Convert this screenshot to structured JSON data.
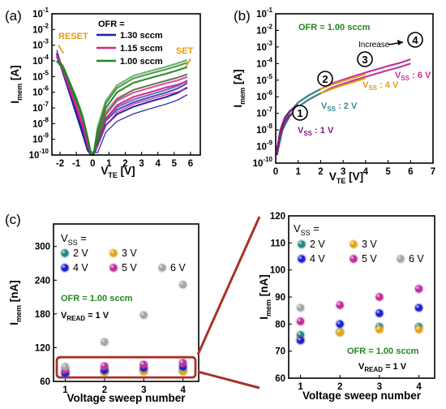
{
  "colors": {
    "ofr_1_30": "#1f1fa8",
    "ofr_1_15": "#d2258e",
    "ofr_1_00": "#23851f",
    "orange": "#e39c1a",
    "teal": "#2e8c95",
    "purple": "#85197e",
    "red_callout": "#a8322a",
    "green_text": "#23861f",
    "v2": "#27888a",
    "v3": "#e2a51b",
    "v4": "#1f23d1",
    "v5": "#c2309b",
    "v6": "#a6a6a6"
  },
  "chart_data": [
    {
      "panel_label": "(a)",
      "type": "line",
      "xlabel": "V",
      "xlabel_sub": "TE",
      "xlabel_unit": "[V]",
      "ylabel": "I",
      "ylabel_sub": "mem",
      "ylabel_unit": "[A]",
      "y_scale": "log",
      "xlim": [
        -2.5,
        6.6
      ],
      "ylim": [
        1e-10,
        0.1
      ],
      "x_ticks": [
        "-2",
        "-1",
        "0",
        "1",
        "2",
        "3",
        "4",
        "5",
        "6"
      ],
      "y_ticks": [
        {
          "base": "10",
          "exp": "-1"
        },
        {
          "base": "10",
          "exp": "-2"
        },
        {
          "base": "10",
          "exp": "-3"
        },
        {
          "base": "10",
          "exp": "-4"
        },
        {
          "base": "10",
          "exp": "-5"
        },
        {
          "base": "10",
          "exp": "-6"
        },
        {
          "base": "10",
          "exp": "-7"
        },
        {
          "base": "10",
          "exp": "-8"
        },
        {
          "base": "10",
          "exp": "-9"
        },
        {
          "base": "10",
          "exp": "-10"
        }
      ],
      "legend_title": "OFR =",
      "series": [
        {
          "name": "1.30 sccm",
          "color_key": "ofr_1_30",
          "x": [
            -2.2,
            -1.8,
            -1.4,
            -1.0,
            -0.6,
            -0.3,
            -0.1,
            0.05,
            0.3,
            0.8,
            1.5,
            2.5,
            3.5,
            4.5,
            5.2,
            5.8
          ],
          "y": [
            0.0003,
            1.5e-05,
            8e-07,
            4e-08,
            2e-09,
            2e-10,
            1e-10,
            1e-10,
            4e-10,
            8e-09,
            4e-08,
            1.2e-07,
            2.5e-07,
            5e-07,
            9e-07,
            2e-06
          ]
        },
        {
          "name": "1.15 sccm",
          "color_key": "ofr_1_15",
          "x": [
            -2.2,
            -1.8,
            -1.4,
            -1.0,
            -0.6,
            -0.3,
            -0.1,
            0.05,
            0.3,
            0.8,
            1.5,
            2.5,
            3.5,
            4.5,
            5.2,
            5.8
          ],
          "y": [
            0.0002,
            2e-05,
            1.5e-06,
            1e-07,
            6e-09,
            4e-10,
            1e-10,
            1e-10,
            1e-09,
            2e-08,
            1.5e-07,
            5e-07,
            1e-06,
            2e-06,
            3e-06,
            5e-06
          ]
        },
        {
          "name": "1.00 sccm",
          "color_key": "ofr_1_00",
          "x": [
            -2.2,
            -1.8,
            -1.4,
            -1.0,
            -0.6,
            -0.3,
            -0.1,
            0.05,
            0.3,
            0.8,
            1.5,
            2.5,
            3.5,
            4.5,
            5.2,
            5.8
          ],
          "y": [
            0.0001,
            3e-05,
            3e-06,
            3e-07,
            2e-08,
            1e-09,
            1e-10,
            1e-10,
            2e-09,
            1e-07,
            1e-06,
            4e-06,
            8e-06,
            1.5e-05,
            2.5e-05,
            4e-05
          ]
        }
      ],
      "annotations": [
        {
          "text": "RESET",
          "color_key": "orange"
        },
        {
          "text": "SET",
          "color_key": "orange"
        }
      ]
    },
    {
      "panel_label": "(b)",
      "type": "line",
      "xlabel": "V",
      "xlabel_sub": "TE",
      "xlabel_unit": "[V]",
      "ylabel": "I",
      "ylabel_sub": "mem",
      "ylabel_unit": "[A]",
      "y_scale": "log",
      "xlim": [
        0,
        7
      ],
      "ylim": [
        1e-10,
        0.1
      ],
      "x_ticks": [
        "0",
        "1",
        "2",
        "3",
        "4",
        "5",
        "6",
        "7"
      ],
      "y_ticks": [
        {
          "base": "10",
          "exp": "-1"
        },
        {
          "base": "10",
          "exp": "-2"
        },
        {
          "base": "10",
          "exp": "-3"
        },
        {
          "base": "10",
          "exp": "-4"
        },
        {
          "base": "10",
          "exp": "-5"
        },
        {
          "base": "10",
          "exp": "-6"
        },
        {
          "base": "10",
          "exp": "-7"
        },
        {
          "base": "10",
          "exp": "-8"
        },
        {
          "base": "10",
          "exp": "-9"
        },
        {
          "base": "10",
          "exp": "-10"
        }
      ],
      "ofr_text": "OFR = 1.00 sccm",
      "increase_text": "Increase",
      "markers": [
        "1",
        "2",
        "3",
        "4"
      ],
      "series": [
        {
          "name": "V",
          "name_sub": "SS",
          "name_rest": " : 1 V",
          "color_key": "purple",
          "x": [
            0.05,
            0.2,
            0.4,
            0.6,
            0.8,
            1.0
          ],
          "y": [
            3e-10,
            5e-09,
            3e-08,
            7e-08,
            1.2e-07,
            1.8e-07
          ]
        },
        {
          "name": "V",
          "name_sub": "SS",
          "name_rest": " : 2 V",
          "color_key": "teal",
          "x": [
            0.05,
            0.3,
            0.6,
            1.0,
            1.4,
            1.8,
            2.0
          ],
          "y": [
            3e-10,
            1e-08,
            6e-08,
            2.5e-07,
            6e-07,
            1.2e-06,
            1.6e-06
          ]
        },
        {
          "name": "V",
          "name_sub": "SS",
          "name_rest": " : 4 V",
          "color_key": "orange",
          "x": [
            0.05,
            0.3,
            0.6,
            1.0,
            1.5,
            2.0,
            2.5,
            3.0,
            3.5,
            4.0
          ],
          "y": [
            3e-10,
            1e-08,
            6e-08,
            2.5e-07,
            7e-07,
            1.6e-06,
            3e-06,
            5e-06,
            8e-06,
            1.3e-05
          ]
        },
        {
          "name": "V",
          "name_sub": "SS",
          "name_rest": " : 6 V",
          "color_key": "v5",
          "x": [
            0.05,
            0.3,
            0.6,
            1.0,
            1.5,
            2.0,
            2.5,
            3.0,
            3.5,
            4.0,
            4.5,
            5.0,
            5.5,
            6.0
          ],
          "y": [
            3e-10,
            1e-08,
            6e-08,
            2.5e-07,
            7e-07,
            1.6e-06,
            3.5e-06,
            6e-06,
            1e-05,
            1.6e-05,
            2.5e-05,
            4e-05,
            6e-05,
            0.0001
          ]
        }
      ]
    },
    {
      "panel_label": "(c)",
      "type": "scatter",
      "xlabel": "Voltage sweep number",
      "ylabel": "I",
      "ylabel_sub": "mem",
      "ylabel_unit": "[nA]",
      "xlim": [
        0.7,
        4.4
      ],
      "ylim": [
        60,
        340
      ],
      "x_ticks": [
        "1",
        "2",
        "3",
        "4"
      ],
      "y_ticks": [
        "60",
        "120",
        "180",
        "240",
        "300"
      ],
      "legend_title": "V",
      "legend_title_sub": "SS",
      "legend_title_rest": " =",
      "ofr_text": "OFR = 1.00 sccm",
      "vread_main": "V",
      "vread_sub": "READ",
      "vread_rest": " = 1 V",
      "series": [
        {
          "name": "2 V",
          "color_key": "v2",
          "x": [
            1,
            2,
            3,
            4
          ],
          "y": [
            76,
            77,
            79,
            79
          ]
        },
        {
          "name": "3 V",
          "color_key": "v3",
          "x": [
            1,
            2,
            3,
            4
          ],
          "y": [
            74,
            77,
            78,
            78
          ]
        },
        {
          "name": "4 V",
          "color_key": "v4",
          "x": [
            1,
            2,
            3,
            4
          ],
          "y": [
            74,
            80,
            84,
            86
          ]
        },
        {
          "name": "5 V",
          "color_key": "v5",
          "x": [
            1,
            2,
            3,
            4
          ],
          "y": [
            81,
            87,
            90,
            93
          ]
        },
        {
          "name": "6 V",
          "color_key": "v6",
          "x": [
            1,
            2,
            3,
            4
          ],
          "y": [
            86,
            130,
            178,
            232
          ]
        }
      ]
    },
    {
      "panel_label": "",
      "type": "scatter",
      "xlabel": "Voltage sweep number",
      "ylabel": "I",
      "ylabel_sub": "mem",
      "ylabel_unit": "[nA]",
      "xlim": [
        0.7,
        4.4
      ],
      "ylim": [
        60,
        120
      ],
      "x_ticks": [
        "1",
        "2",
        "3",
        "4"
      ],
      "y_ticks": [
        "60",
        "70",
        "80",
        "90",
        "100",
        "110",
        "120"
      ],
      "legend_title": "V",
      "legend_title_sub": "SS",
      "legend_title_rest": " =",
      "ofr_text": "OFR = 1.00 sccm",
      "vread_main": "V",
      "vread_sub": "READ",
      "vread_rest": " = 1 V",
      "series": [
        {
          "name": "2 V",
          "color_key": "v2",
          "x": [
            1,
            2,
            3,
            4
          ],
          "y": [
            76,
            77,
            79,
            79
          ]
        },
        {
          "name": "3 V",
          "color_key": "v3",
          "x": [
            1,
            2,
            3,
            4
          ],
          "y": [
            74,
            77,
            78,
            78
          ]
        },
        {
          "name": "4 V",
          "color_key": "v4",
          "x": [
            1,
            2,
            3,
            4
          ],
          "y": [
            74,
            80,
            84,
            86
          ]
        },
        {
          "name": "5 V",
          "color_key": "v5",
          "x": [
            1,
            2,
            3,
            4
          ],
          "y": [
            81,
            87,
            90,
            93
          ]
        },
        {
          "name": "6 V",
          "color_key": "v6",
          "x": [
            1
          ],
          "y": [
            86
          ]
        }
      ]
    }
  ]
}
